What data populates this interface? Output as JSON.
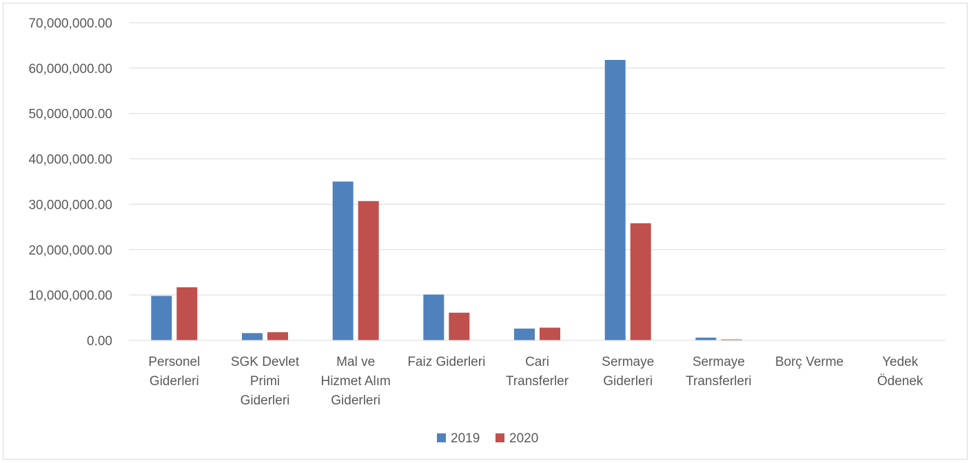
{
  "chart_data": {
    "type": "bar",
    "title": "",
    "xlabel": "",
    "ylabel": "",
    "ylim": [
      0,
      70000000
    ],
    "yticks": [
      0,
      10000000,
      20000000,
      30000000,
      40000000,
      50000000,
      60000000,
      70000000
    ],
    "ytick_labels": [
      "0.00",
      "10,000,000.00",
      "20,000,000.00",
      "30,000,000.00",
      "40,000,000.00",
      "50,000,000.00",
      "60,000,000.00",
      "70,000,000.00"
    ],
    "grid": true,
    "legend_position": "bottom",
    "categories": [
      [
        "Personel",
        "Giderleri"
      ],
      [
        "SGK Devlet",
        "Primi",
        "Giderleri"
      ],
      [
        "Mal ve",
        "Hizmet Alım",
        "Giderleri"
      ],
      [
        "Faiz Giderleri"
      ],
      [
        "Cari",
        "Transferler"
      ],
      [
        "Sermaye",
        "Giderleri"
      ],
      [
        "Sermaye",
        "Transferleri"
      ],
      [
        "Borç Verme"
      ],
      [
        "Yedek",
        "Ödenek"
      ]
    ],
    "series": [
      {
        "name": "2019",
        "color": "#4f81bd",
        "values": [
          9800000,
          1600000,
          35000000,
          10100000,
          2600000,
          61800000,
          600000,
          0,
          0
        ]
      },
      {
        "name": "2020",
        "color": "#c0504d",
        "values": [
          11700000,
          1800000,
          30700000,
          6100000,
          2800000,
          25800000,
          200000,
          0,
          0
        ]
      }
    ]
  }
}
